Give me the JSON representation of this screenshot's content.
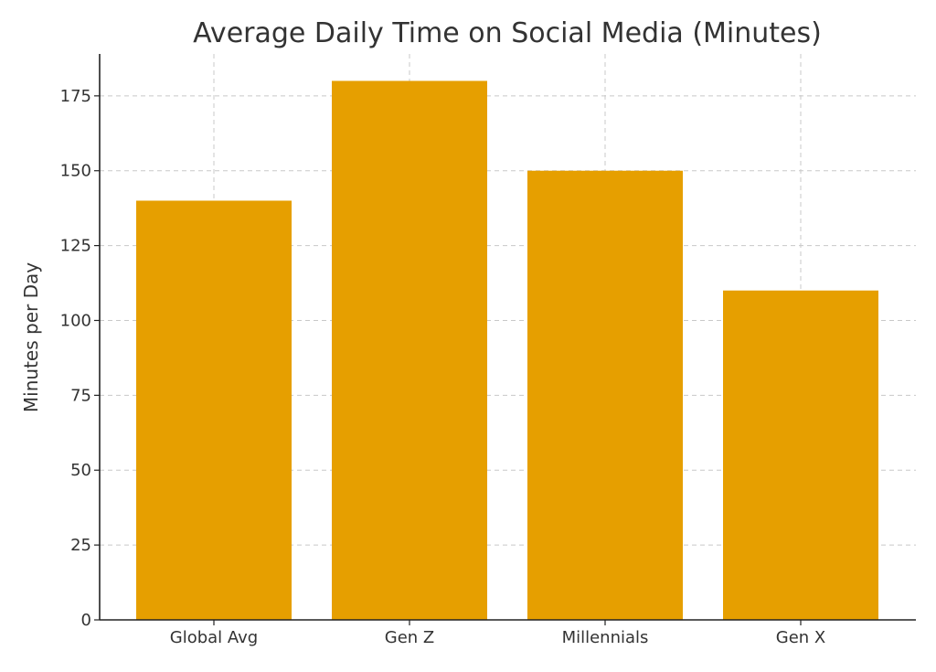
{
  "chart_data": {
    "type": "bar",
    "title": "Average Daily Time on Social Media (Minutes)",
    "xlabel": "",
    "ylabel": "Minutes per Day",
    "categories": [
      "Global Avg",
      "Gen Z",
      "Millennials",
      "Gen X"
    ],
    "values": [
      140,
      180,
      150,
      110
    ],
    "ylim": [
      0,
      189
    ],
    "yticks": [
      0,
      25,
      50,
      75,
      100,
      125,
      150,
      175
    ],
    "grid": true,
    "bar_color": "#E69F00"
  }
}
